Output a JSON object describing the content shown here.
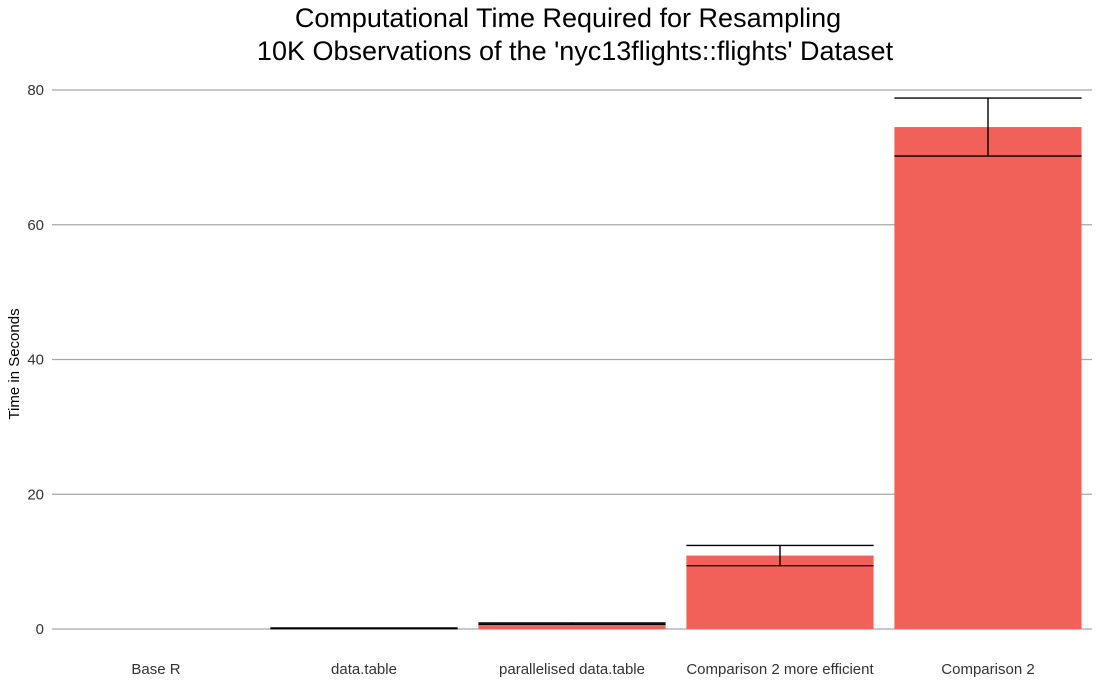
{
  "chart_data": {
    "type": "bar",
    "title": [
      "Computational Time Required for Resampling",
      "10K Observations of the 'nyc13flights::flights' Dataset"
    ],
    "xlabel": "",
    "ylabel": "Time in Seconds",
    "categories": [
      "Base R",
      "data.table",
      "parallelised data.table",
      "Comparison 2 more efficient",
      "Comparison 2"
    ],
    "values": [
      0.0,
      0.1,
      0.8,
      10.9,
      74.5
    ],
    "error_bars": [
      {
        "low": 0.0,
        "high": 0.0
      },
      {
        "low": 0.05,
        "high": 0.15
      },
      {
        "low": 0.7,
        "high": 0.9
      },
      {
        "low": 9.4,
        "high": 12.4
      },
      {
        "low": 70.2,
        "high": 78.8
      }
    ],
    "y_ticks": [
      0,
      20,
      40,
      60,
      80
    ],
    "ylim": [
      0,
      80
    ],
    "bar_color": "#f2605a",
    "grid": "horizontal",
    "legend": "none"
  }
}
